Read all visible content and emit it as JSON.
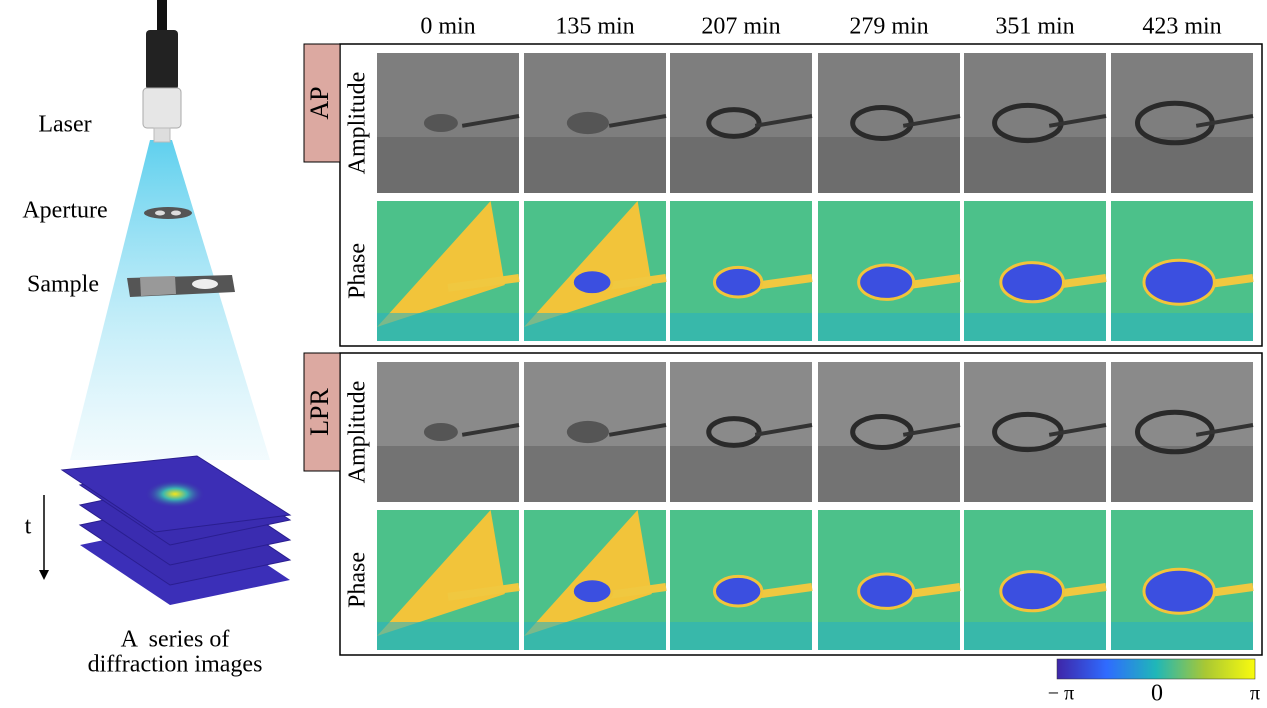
{
  "left": {
    "laser": "Laser",
    "aperture": "Aperture",
    "sample": "Sample",
    "time_axis": "t",
    "caption": [
      "A  series of",
      "diffraction images"
    ]
  },
  "columns": [
    "0 min",
    "135 min",
    "207 min",
    "279 min",
    "351 min",
    "423 min"
  ],
  "groups": [
    {
      "label": "AP",
      "rows": [
        "Amplitude",
        "Phase"
      ]
    },
    {
      "label": "LPR",
      "rows": [
        "Amplitude",
        "Phase"
      ]
    }
  ],
  "colorbar": {
    "labels": [
      "− π",
      "0",
      "π"
    ]
  }
}
